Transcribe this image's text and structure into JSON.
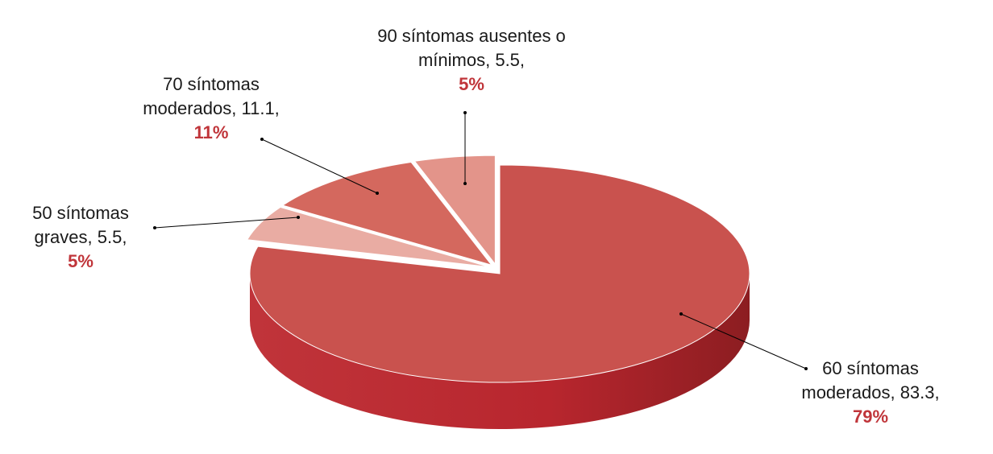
{
  "chart_data": {
    "type": "pie3d",
    "categories": [
      "60 síntomas moderados,",
      "50 síntomas graves,",
      "70 síntomas moderados,",
      "90 síntomas ausentes o mínimos,"
    ],
    "values": [
      83.3,
      5.5,
      11.1,
      5.5
    ],
    "value_labels": [
      "83.3,",
      "5.5,",
      "11.1,",
      "5.5,"
    ],
    "percent_labels": [
      "79%",
      "5%",
      "11%",
      "5%"
    ],
    "colors": [
      "#c9524e",
      "#e9aca3",
      "#d4685e",
      "#e3948a"
    ]
  }
}
